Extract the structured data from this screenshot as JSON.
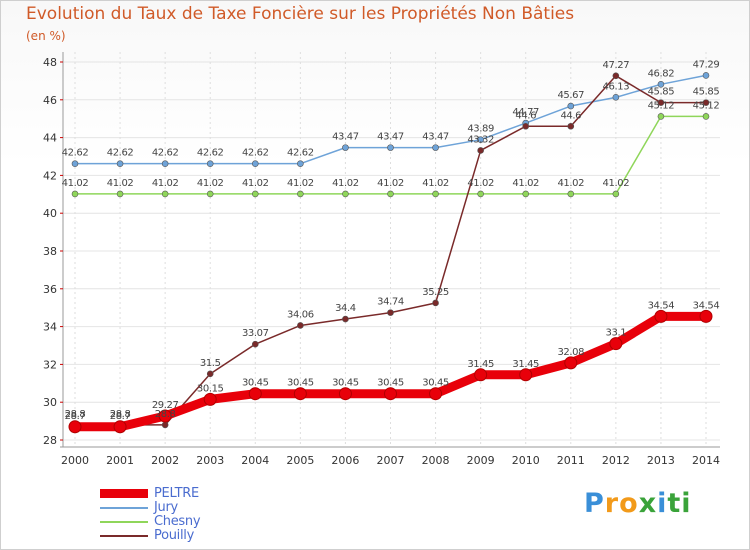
{
  "chart_data": {
    "type": "line",
    "title": "Evolution du Taux de Taxe Foncière sur les Propriétés Non Bâties",
    "ylabel": "(en %)",
    "ylim": [
      28,
      48
    ],
    "yticks": [
      28,
      30,
      32,
      34,
      36,
      38,
      40,
      42,
      44,
      46,
      48
    ],
    "x": [
      2000,
      2001,
      2002,
      2003,
      2004,
      2005,
      2006,
      2007,
      2008,
      2009,
      2010,
      2011,
      2012,
      2013,
      2014
    ],
    "series": [
      {
        "name": "PELTRE",
        "color": "#e8000a",
        "values": [
          28.7,
          28.7,
          29.27,
          30.15,
          30.45,
          30.45,
          30.45,
          30.45,
          30.45,
          31.45,
          31.45,
          32.08,
          33.1,
          34.54,
          34.54
        ],
        "labels": [
          "28.7",
          "28.7",
          "29.27",
          "30.15",
          "30.45",
          "30.45",
          "30.45",
          "30.45",
          "30.45",
          "31.45",
          "31.45",
          "32.08",
          "33.1",
          "34.54",
          "34.54"
        ]
      },
      {
        "name": "Jury",
        "color": "#6ea3d8",
        "values": [
          42.62,
          42.62,
          42.62,
          42.62,
          42.62,
          42.62,
          43.47,
          43.47,
          43.47,
          43.89,
          44.77,
          45.67,
          46.13,
          46.82,
          47.29
        ],
        "labels": [
          "42.62",
          "42.62",
          "42.62",
          "42.62",
          "42.62",
          "42.62",
          "43.47",
          "43.47",
          "43.47",
          "43.89",
          "44.77",
          "45.67",
          "46.13",
          "46.82",
          "47.29"
        ]
      },
      {
        "name": "Chesny",
        "color": "#8fd65a",
        "values": [
          41.02,
          41.02,
          41.02,
          41.02,
          41.02,
          41.02,
          41.02,
          41.02,
          41.02,
          41.02,
          41.02,
          41.02,
          41.02,
          45.12,
          45.12
        ],
        "labels": [
          "41.02",
          "41.02",
          "41.02",
          "41.02",
          "41.02",
          "41.02",
          "41.02",
          "41.02",
          "41.02",
          "41.02",
          "41.02",
          "41.02",
          "41.02",
          "45.12",
          "45.12"
        ]
      },
      {
        "name": "Pouilly",
        "color": "#7a2a2a",
        "values": [
          28.8,
          28.8,
          28.8,
          31.5,
          33.07,
          34.06,
          34.4,
          34.74,
          35.25,
          43.32,
          44.6,
          44.6,
          47.27,
          45.85,
          45.85
        ],
        "labels": [
          "28.8",
          "28.8",
          "28.8",
          "31.5",
          "33.07",
          "34.06",
          "34.4",
          "34.74",
          "35.25",
          "43.32",
          "44.6",
          "44.6",
          "47.27",
          "45.85",
          "45.85"
        ]
      }
    ],
    "legend_position": "bottom-left"
  },
  "brand": {
    "letters": [
      "P",
      "r",
      "o",
      "x",
      "i",
      "t",
      "i"
    ],
    "colors": [
      "#3a8fd8",
      "#f29a1a",
      "#f29a1a",
      "#3aa33a",
      "#3a8fd8",
      "#3aa33a",
      "#3aa33a"
    ]
  }
}
